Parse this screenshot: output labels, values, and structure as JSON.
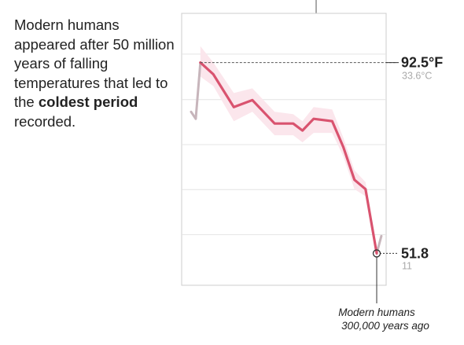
{
  "annotation": {
    "before": "Modern humans appeared after 50 million years of falling temperatures that led to the ",
    "bold": "coldest period",
    "after": " recorded."
  },
  "colors": {
    "line": "#d9536f",
    "band": "#fbe6ec",
    "grey_line": "#c7b5bb",
    "grid": "#e4e4e4",
    "frame": "#cccccc"
  },
  "chart_data": {
    "type": "line",
    "ylim": [
      45,
      103
    ],
    "xlim": [
      0,
      100
    ],
    "gridlines": [
      55.8,
      65.4,
      75.0,
      84.6,
      94.3
    ],
    "series": [
      {
        "role": "main",
        "points": [
          [
            5,
            92.5
          ],
          [
            12,
            90
          ],
          [
            23,
            83
          ],
          [
            33,
            84.5
          ],
          [
            45,
            79.5
          ],
          [
            55,
            79.5
          ],
          [
            60,
            78
          ],
          [
            66,
            80.5
          ],
          [
            76,
            80
          ],
          [
            82,
            74.5
          ],
          [
            88,
            67.5
          ],
          [
            94,
            65.5
          ],
          [
            100,
            51.8
          ]
        ]
      },
      {
        "role": "grey-start",
        "points": [
          [
            0,
            82
          ],
          [
            2.5,
            80.5
          ],
          [
            5,
            92.5
          ]
        ]
      },
      {
        "role": "grey-end",
        "points": [
          [
            100,
            51.8
          ],
          [
            102.5,
            55.5
          ]
        ]
      }
    ],
    "band_upper": [
      [
        5,
        96
      ],
      [
        12,
        92.5
      ],
      [
        23,
        86
      ],
      [
        33,
        87
      ],
      [
        45,
        82
      ],
      [
        55,
        81.5
      ],
      [
        60,
        80
      ],
      [
        66,
        83
      ],
      [
        76,
        82.5
      ],
      [
        82,
        76.5
      ],
      [
        88,
        69.5
      ],
      [
        94,
        67
      ],
      [
        100,
        53
      ]
    ],
    "band_lower": [
      [
        5,
        89.5
      ],
      [
        12,
        87.5
      ],
      [
        23,
        80
      ],
      [
        33,
        82
      ],
      [
        45,
        77
      ],
      [
        55,
        77
      ],
      [
        60,
        75.5
      ],
      [
        66,
        77.5
      ],
      [
        76,
        77.5
      ],
      [
        82,
        72.5
      ],
      [
        88,
        65.5
      ],
      [
        94,
        64
      ],
      [
        100,
        50.5
      ]
    ],
    "callouts": [
      {
        "value": 92.5,
        "label": "92.5°F",
        "sub": "33.6°C"
      },
      {
        "value": 51.8,
        "label": "51.8",
        "sub": "11"
      }
    ],
    "note": [
      "Modern humans",
      "300,000 years ago"
    ]
  }
}
